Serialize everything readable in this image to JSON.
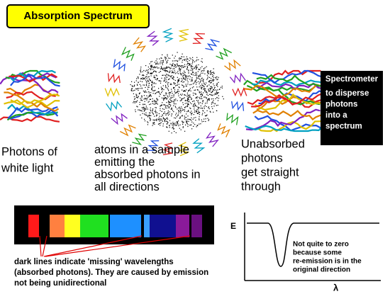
{
  "title": "Absorption Spectrum",
  "white_light": {
    "lines": [
      "Photons of",
      "white light"
    ]
  },
  "sample": {
    "lines": [
      "atoms in a sample",
      "emitting the",
      "absorbed photons in",
      "all directions"
    ]
  },
  "unabsorbed": {
    "lines": [
      "Unabsorbed",
      "photons",
      "get straight",
      "through"
    ]
  },
  "spectrometer": {
    "label": "Spectrometer",
    "lines": [
      "to disperse",
      "photons",
      "into a",
      "spectrum"
    ]
  },
  "spectrum_note": {
    "lines": [
      "dark lines indicate 'missing' wavelengths",
      "(absorbed photons). They are caused by emission",
      "not being unidirectional"
    ]
  },
  "graph": {
    "y_label": "E",
    "x_label": "λ",
    "note": {
      "lines": [
        "Not quite to zero",
        "because some",
        "re-emission is in the",
        "original direction"
      ]
    }
  }
}
